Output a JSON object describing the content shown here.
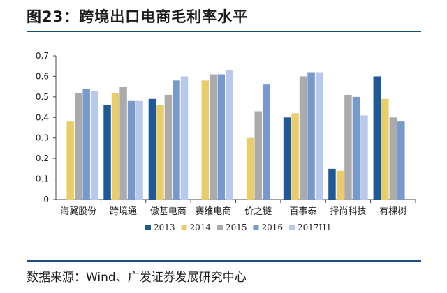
{
  "title": "图23：跨境出口电商毛利率水平",
  "source": "数据来源：Wind、广发证券发展研究中心",
  "chart_data": {
    "type": "bar",
    "categories": [
      "海翼股份",
      "跨境通",
      "傲基电商",
      "赛维电商",
      "价之链",
      "百事泰",
      "择尚科技",
      "有棵树"
    ],
    "ylim": [
      0,
      0.7
    ],
    "yticks": [
      "0",
      "0.1",
      "0.2",
      "0.3",
      "0.4",
      "0.5",
      "0.6",
      "0.7"
    ],
    "legend_position": "bottom",
    "grid": false,
    "series": [
      {
        "name": "2013",
        "color": "#1f5a96",
        "values": [
          null,
          0.46,
          0.49,
          null,
          null,
          0.4,
          0.15,
          0.6
        ]
      },
      {
        "name": "2014",
        "color": "#e8cd6a",
        "values": [
          0.38,
          0.52,
          0.46,
          0.58,
          0.3,
          0.42,
          0.14,
          0.49
        ]
      },
      {
        "name": "2015",
        "color": "#ababab",
        "values": [
          0.52,
          0.55,
          0.51,
          0.61,
          0.43,
          0.6,
          0.51,
          0.4
        ]
      },
      {
        "name": "2016",
        "color": "#7799cc",
        "values": [
          0.54,
          0.48,
          0.58,
          0.61,
          0.56,
          0.62,
          0.5,
          0.38
        ]
      },
      {
        "name": "2017H1",
        "color": "#b9c9ec",
        "values": [
          0.53,
          0.48,
          0.6,
          0.63,
          null,
          0.62,
          0.41,
          null
        ]
      }
    ]
  }
}
